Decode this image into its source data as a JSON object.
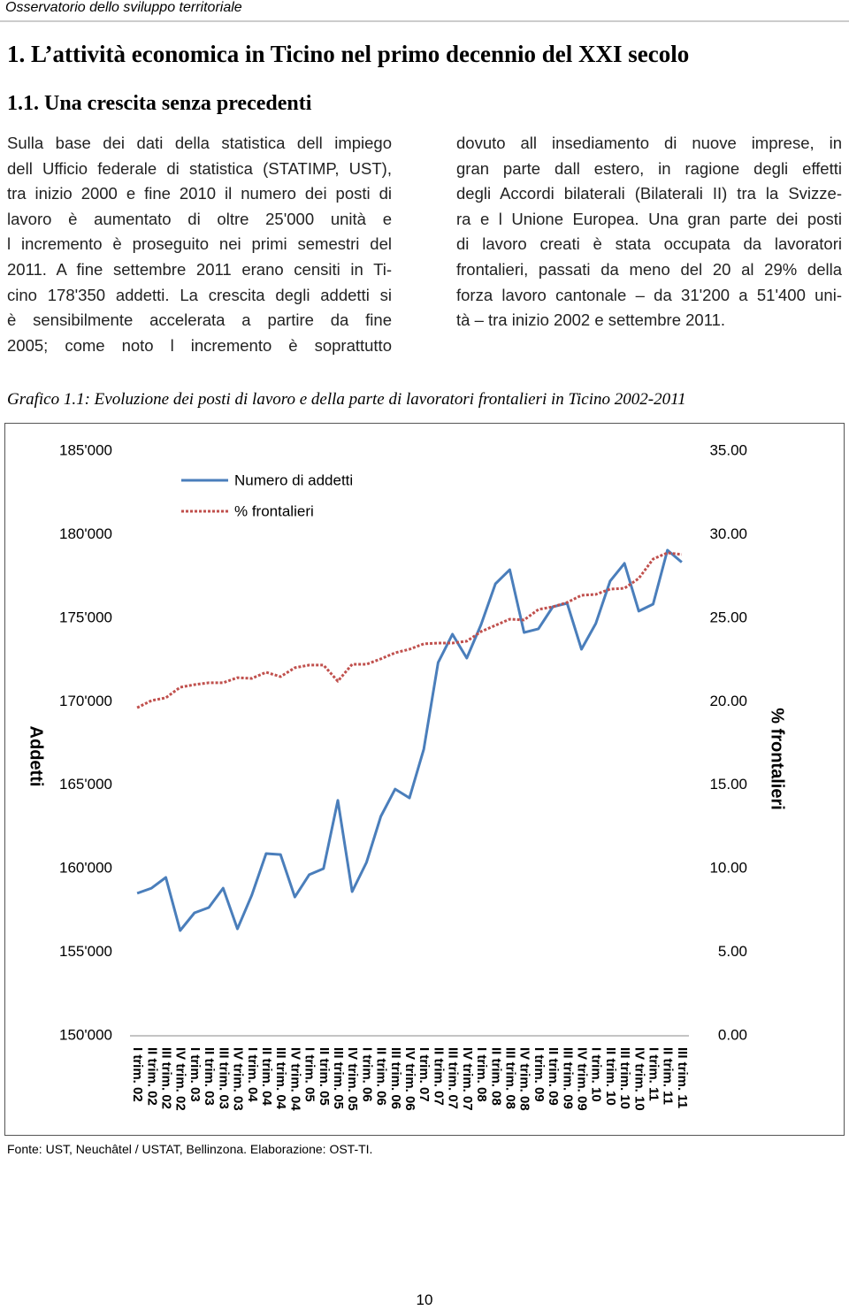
{
  "header": "Osservatorio dello sviluppo territoriale",
  "heading1": "1. L’attività economica in Ticino nel primo decennio del XXI secolo",
  "heading2": "1.1. Una crescita senza precedenti",
  "column_left": [
    "Sulla base dei dati della statistica dell impiego",
    "dell Ufficio federale di statistica (STATIMP, UST),",
    "tra inizio 2000 e fine 2010 il numero dei posti di",
    "lavoro è aumentato di oltre 25'000 unità e",
    "l incremento è proseguito nei primi semestri del",
    "2011. A fine settembre 2011 erano censiti in Ti-",
    "cino 178'350 addetti. La crescita degli addetti si",
    "è sensibilmente accelerata a partire da fine",
    "2005; come noto l incremento è soprattutto"
  ],
  "column_right": [
    "dovuto all insediamento di nuove imprese, in",
    "gran parte dall estero, in ragione degli effetti",
    "degli Accordi bilaterali (Bilaterali II) tra la Svizze-",
    "ra e l Unione Europea. Una gran parte dei posti",
    "di lavoro creati è stata occupata da lavoratori",
    "frontalieri, passati da meno del 20 al 29% della",
    "forza lavoro cantonale – da 31'200 a 51'400 uni-",
    "tà – tra inizio 2002 e settembre 2011."
  ],
  "figure_caption": "Grafico 1.1: Evoluzione dei posti di lavoro e della parte di lavoratori frontalieri in Ticino 2002-2011",
  "chart_data": {
    "type": "line",
    "categories": [
      "I trim. 02",
      "II trim. 02",
      "III trim. 02",
      "IV trim. 02",
      "I trim. 03",
      "II trim. 03",
      "III trim. 03",
      "IV trim. 03",
      "I trim. 04",
      "II trim. 04",
      "III trim. 04",
      "IV trim. 04",
      "I trim. 05",
      "II trim. 05",
      "III trim. 05",
      "IV trim. 05",
      "I trim. 06",
      "II trim. 06",
      "III trim. 06",
      "IV trim. 06",
      "I trim. 07",
      "II trim. 07",
      "III trim. 07",
      "IV trim. 07",
      "I trim. 08",
      "II trim. 08",
      "III trim. 08",
      "IV trim. 08",
      "I trim. 09",
      "II trim. 09",
      "III trim. 09",
      "IV trim. 09",
      "I trim. 10",
      "II trim. 10",
      "III trim. 10",
      "IV trim. 10",
      "I trim. 11",
      "II trim. 11",
      "III trim. 11"
    ],
    "series": [
      {
        "name": "Numero di addetti",
        "color": "#4a7ebb",
        "dash": false,
        "values": [
          158530,
          158840,
          159480,
          156300,
          157360,
          157680,
          158840,
          156400,
          158420,
          160910,
          160850,
          158310,
          159640,
          160010,
          164090,
          158630,
          160380,
          163130,
          164770,
          164240,
          167160,
          172340,
          174040,
          172610,
          174620,
          177060,
          177900,
          174140,
          174360,
          175680,
          175890,
          173140,
          174680,
          177220,
          178280,
          175420,
          175840,
          179070,
          178350
        ]
      },
      {
        "name": "% frontalieri",
        "color": "#c0504d",
        "dash": true,
        "axis": "y2",
        "values": [
          19.64,
          20.07,
          20.23,
          20.86,
          21.02,
          21.13,
          21.13,
          21.44,
          21.39,
          21.76,
          21.5,
          22.03,
          22.19,
          22.19,
          21.23,
          22.24,
          22.24,
          22.56,
          22.93,
          23.14,
          23.46,
          23.51,
          23.51,
          23.62,
          24.2,
          24.57,
          24.94,
          24.89,
          25.52,
          25.68,
          25.94,
          26.37,
          26.42,
          26.74,
          26.79,
          27.38,
          28.54,
          28.91,
          28.81
        ]
      }
    ],
    "y_label": "Addetti",
    "y2_label": "% frontalieri",
    "ylim": [
      150000,
      185000
    ],
    "yticks": [
      {
        "value": 150000,
        "label": "150'000"
      },
      {
        "value": 155000,
        "label": "155'000"
      },
      {
        "value": 160000,
        "label": "160'000"
      },
      {
        "value": 165000,
        "label": "165'000"
      },
      {
        "value": 170000,
        "label": "170'000"
      },
      {
        "value": 175000,
        "label": "175'000"
      },
      {
        "value": 180000,
        "label": "180'000"
      },
      {
        "value": 185000,
        "label": "185'000"
      }
    ],
    "y2lim": [
      0,
      35
    ],
    "y2ticks": [
      {
        "value": 0,
        "label": "0.00"
      },
      {
        "value": 5,
        "label": "5.00"
      },
      {
        "value": 10,
        "label": "10.00"
      },
      {
        "value": 15,
        "label": "15.00"
      },
      {
        "value": 20,
        "label": "20.00"
      },
      {
        "value": 25,
        "label": "25.00"
      },
      {
        "value": 30,
        "label": "30.00"
      },
      {
        "value": 35,
        "label": "35.00"
      }
    ],
    "grid": false,
    "legend": "top-left"
  },
  "source": "Fonte: UST, Neuchâtel / USTAT, Bellinzona. Elaborazione: OST-TI.",
  "page_number": "10"
}
